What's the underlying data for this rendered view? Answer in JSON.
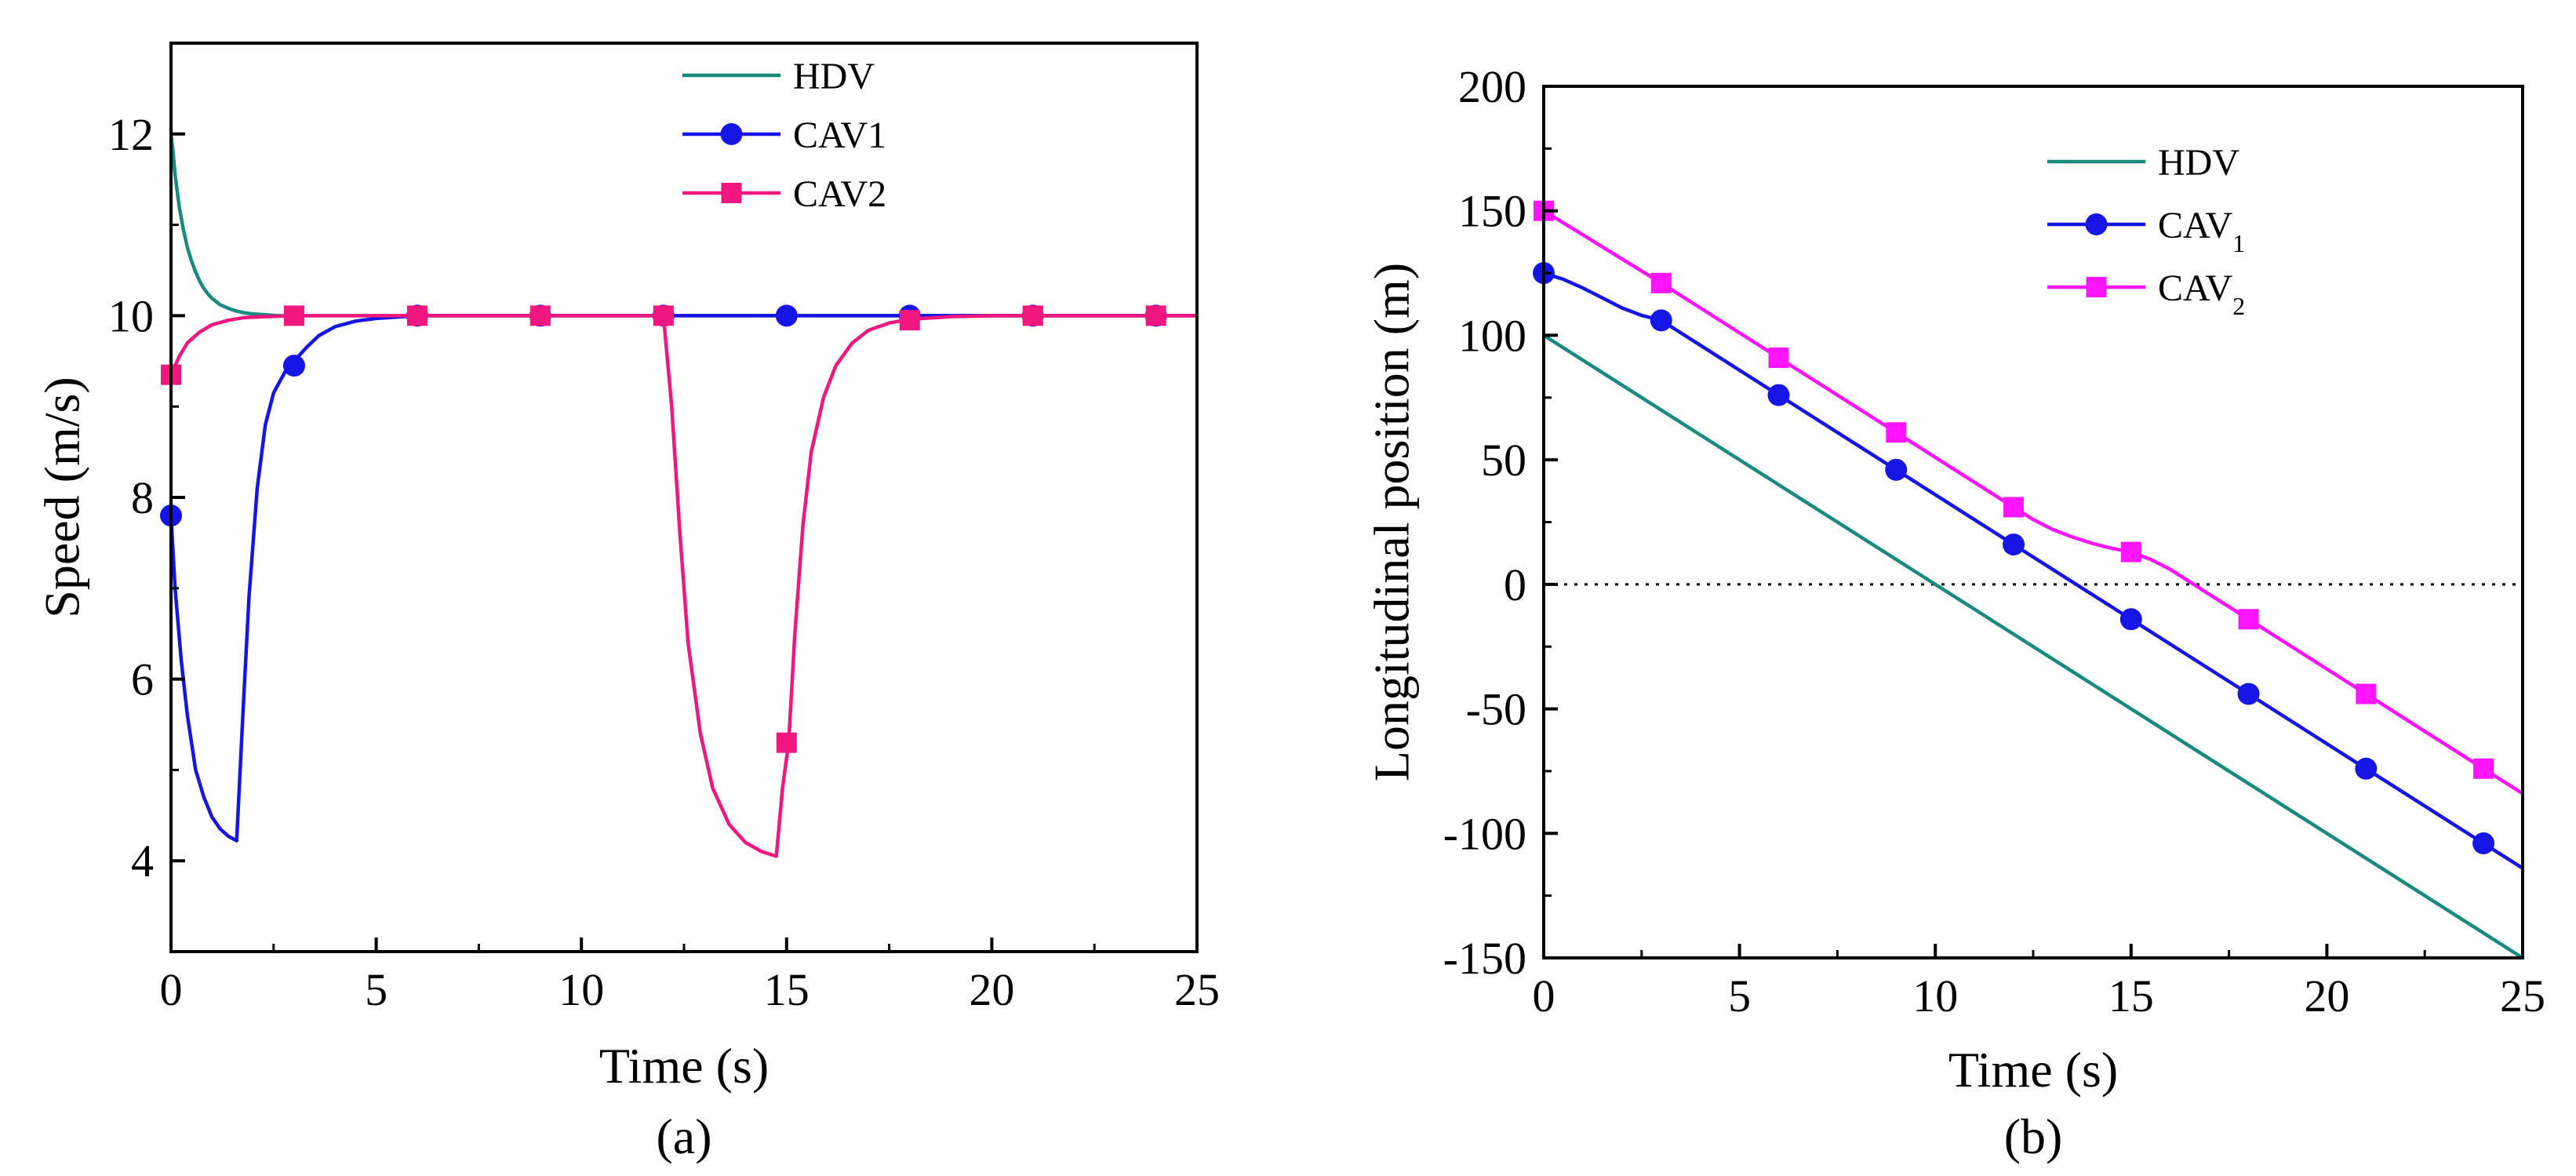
{
  "chart_data": [
    {
      "type": "line",
      "panel_label": "(a)",
      "xlabel": "Time (s)",
      "ylabel": "Speed (m/s)",
      "xlim": [
        0,
        25
      ],
      "ylim": [
        3,
        13
      ],
      "xticks": [
        "0",
        "5",
        "10",
        "15",
        "20",
        "25"
      ],
      "yticks": [
        "4",
        "6",
        "8",
        "10",
        "12"
      ],
      "legend_position": "top-center",
      "series": [
        {
          "name": "HDV",
          "color": "#188a80",
          "marker": "none",
          "x": [
            0,
            0.05,
            0.1,
            0.2,
            0.3,
            0.4,
            0.5,
            0.6,
            0.7,
            0.8,
            0.9,
            1.0,
            1.2,
            1.4,
            1.6,
            1.8,
            2.0,
            2.3,
            2.6,
            3.0,
            4,
            6,
            10,
            15,
            20,
            25
          ],
          "y": [
            12.0,
            11.8,
            11.55,
            11.2,
            10.95,
            10.75,
            10.6,
            10.48,
            10.38,
            10.3,
            10.24,
            10.19,
            10.12,
            10.08,
            10.05,
            10.03,
            10.02,
            10.01,
            10.0,
            10.0,
            10.0,
            10.0,
            10.0,
            10.0,
            10.0,
            10.0
          ]
        },
        {
          "name": "CAV1",
          "label_main": "CAV",
          "label_sub": "1",
          "color": "#1515e6",
          "marker": "circle",
          "x": [
            0,
            0.1,
            0.25,
            0.4,
            0.6,
            0.8,
            1.0,
            1.2,
            1.4,
            1.6,
            1.75,
            1.9,
            2.1,
            2.3,
            2.5,
            2.8,
            3.0,
            3.3,
            3.6,
            4.0,
            4.5,
            5.0,
            6.0,
            9,
            12,
            15,
            18,
            21,
            24,
            25
          ],
          "y": [
            7.8,
            7.0,
            6.2,
            5.6,
            5.0,
            4.7,
            4.48,
            4.35,
            4.27,
            4.22,
            5.6,
            6.9,
            8.1,
            8.8,
            9.15,
            9.4,
            9.5,
            9.65,
            9.78,
            9.88,
            9.94,
            9.97,
            10.0,
            10.0,
            10.0,
            10.0,
            10.0,
            10.0,
            10.0,
            10.0
          ],
          "marker_x": [
            0,
            3,
            6,
            9,
            12,
            15,
            18,
            21,
            24
          ],
          "marker_y": [
            7.8,
            9.45,
            10.0,
            10.0,
            10.0,
            10.0,
            10.0,
            10.0,
            10.0
          ]
        },
        {
          "name": "CAV2",
          "label_main": "CAV",
          "label_sub": "2",
          "color": "#f0187f",
          "marker": "square",
          "x": [
            0,
            0.2,
            0.4,
            0.7,
            1.0,
            1.4,
            1.8,
            2.3,
            3.0,
            4,
            6,
            9,
            12,
            12.2,
            12.4,
            12.6,
            12.9,
            13.2,
            13.6,
            14.0,
            14.4,
            14.75,
            14.9,
            15.05,
            15.2,
            15.4,
            15.6,
            15.9,
            16.2,
            16.6,
            17.0,
            17.5,
            18.0,
            19.0,
            20,
            25
          ],
          "y": [
            9.35,
            9.55,
            9.7,
            9.82,
            9.9,
            9.95,
            9.98,
            9.99,
            10.0,
            10.0,
            10.0,
            10.0,
            10.0,
            9.0,
            7.6,
            6.4,
            5.4,
            4.8,
            4.4,
            4.2,
            4.1,
            4.05,
            4.8,
            5.3,
            6.5,
            7.7,
            8.5,
            9.1,
            9.45,
            9.7,
            9.84,
            9.92,
            9.96,
            9.99,
            10.0,
            10.0
          ],
          "marker_x": [
            0,
            3,
            6,
            9,
            12,
            15,
            18,
            21,
            24
          ],
          "marker_y": [
            9.35,
            10.0,
            10.0,
            10.0,
            10.0,
            5.3,
            9.95,
            10.0,
            10.0
          ]
        }
      ]
    },
    {
      "type": "line",
      "panel_label": "(b)",
      "xlabel": "Time (s)",
      "ylabel": "Longitudinal position (m)",
      "xlim": [
        0,
        25
      ],
      "ylim": [
        -150,
        200
      ],
      "xticks": [
        "0",
        "5",
        "10",
        "15",
        "20",
        "25"
      ],
      "yticks": [
        "200",
        "150",
        "100",
        "50",
        "0",
        "-50",
        "-100",
        "-150"
      ],
      "reference_line_y": 0,
      "legend_position": "top-center",
      "series": [
        {
          "name": "HDV",
          "color": "#188a80",
          "marker": "none",
          "x": [
            0,
            25
          ],
          "y": [
            100,
            -150
          ]
        },
        {
          "name": "CAV1",
          "label_main": "CAV",
          "label_sub": "1",
          "color": "#1515e6",
          "marker": "circle",
          "x": [
            0,
            0.5,
            1,
            1.5,
            2,
            2.5,
            3,
            6,
            9,
            12,
            15,
            18,
            21,
            24,
            25
          ],
          "y": [
            125,
            122.5,
            119,
            115,
            111,
            108,
            106,
            76,
            46,
            16,
            -14,
            -44,
            -74,
            -104,
            -114
          ],
          "marker_x": [
            0,
            3,
            6,
            9,
            12,
            15,
            18,
            21,
            24
          ],
          "marker_y": [
            125,
            106,
            76,
            46,
            16,
            -14,
            -44,
            -74,
            -104
          ]
        },
        {
          "name": "CAV2",
          "label_main": "CAV",
          "label_sub": "2",
          "color": "#ff14ff",
          "marker": "square",
          "x": [
            0,
            3,
            6,
            9,
            12,
            12.5,
            13,
            13.5,
            14,
            14.5,
            15,
            15.5,
            16,
            16.5,
            17,
            18,
            21,
            24,
            25
          ],
          "y": [
            150,
            121,
            91,
            61,
            31,
            26,
            22,
            19,
            16.5,
            14.5,
            13,
            10,
            6,
            1,
            -4,
            -14,
            -44,
            -74,
            -84
          ],
          "marker_x": [
            0,
            3,
            6,
            9,
            12,
            15,
            18,
            21,
            24
          ],
          "marker_y": [
            150,
            121,
            91,
            61,
            31,
            13,
            -14,
            -44,
            -74
          ]
        }
      ]
    }
  ]
}
